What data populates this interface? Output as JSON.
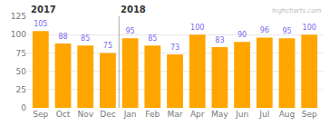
{
  "chart_data": {
    "type": "bar",
    "categories": [
      "Sep",
      "Oct",
      "Nov",
      "Dec",
      "Jan",
      "Feb",
      "Mar",
      "Apr",
      "May",
      "Jun",
      "Jul",
      "Aug",
      "Sep"
    ],
    "values": [
      105,
      88,
      85,
      75,
      95,
      85,
      73,
      100,
      83,
      90,
      96,
      95,
      100
    ],
    "color": "#FFA500",
    "ylim": [
      0,
      125
    ],
    "yticks": [
      0,
      25,
      50,
      75,
      100,
      125
    ],
    "grid": true,
    "data_labels": true,
    "annotations": [
      {
        "text": "2017",
        "category": "Sep"
      },
      {
        "text": "2018",
        "category": "Jan"
      },
      {
        "text": "highcharts.com"
      }
    ]
  }
}
